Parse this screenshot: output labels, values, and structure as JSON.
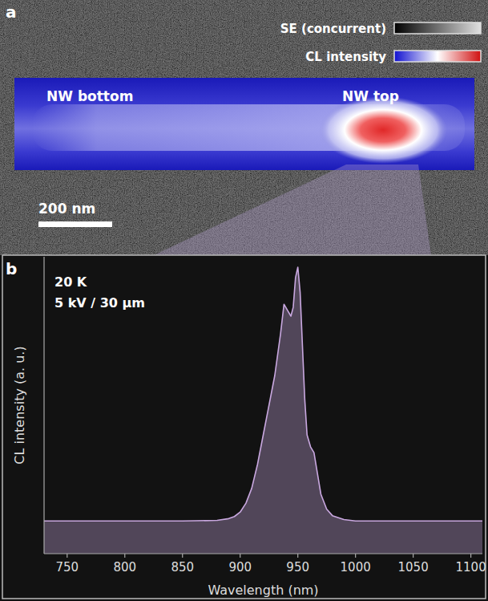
{
  "chart_data": [
    {
      "type": "image",
      "label": "a",
      "colorbar_labels": [
        "SE (concurrent)",
        "CL intensity"
      ],
      "annotations": [
        "NW bottom",
        "NW top"
      ],
      "scale_bar": "200 nm"
    },
    {
      "type": "line",
      "label": "b",
      "annotations": [
        "20 K",
        "5 kV / 30 μm"
      ],
      "xlabel": "Wavelength (nm)",
      "ylabel": "CL intensity (a. u.)",
      "x": [
        730,
        800,
        850,
        880,
        890,
        895,
        900,
        905,
        910,
        915,
        920,
        925,
        930,
        935,
        938,
        941,
        944,
        946,
        948,
        950,
        952,
        954,
        956,
        958,
        961,
        964,
        967,
        970,
        975,
        980,
        990,
        1000,
        1050,
        1110
      ],
      "series": [
        {
          "color": "#c9a8e0",
          "values": [
            0.11,
            0.11,
            0.11,
            0.112,
            0.118,
            0.125,
            0.14,
            0.17,
            0.22,
            0.3,
            0.4,
            0.5,
            0.6,
            0.74,
            0.84,
            0.82,
            0.8,
            0.83,
            0.93,
            0.965,
            0.88,
            0.7,
            0.52,
            0.4,
            0.36,
            0.34,
            0.27,
            0.2,
            0.15,
            0.128,
            0.115,
            0.11,
            0.11,
            0.11
          ]
        }
      ],
      "xlim": [
        730,
        1110
      ],
      "ylim": [
        0,
        1
      ],
      "xticks": [
        750,
        800,
        850,
        900,
        950,
        1000,
        1050,
        1100
      ],
      "tick_labels": "x"
    }
  ]
}
